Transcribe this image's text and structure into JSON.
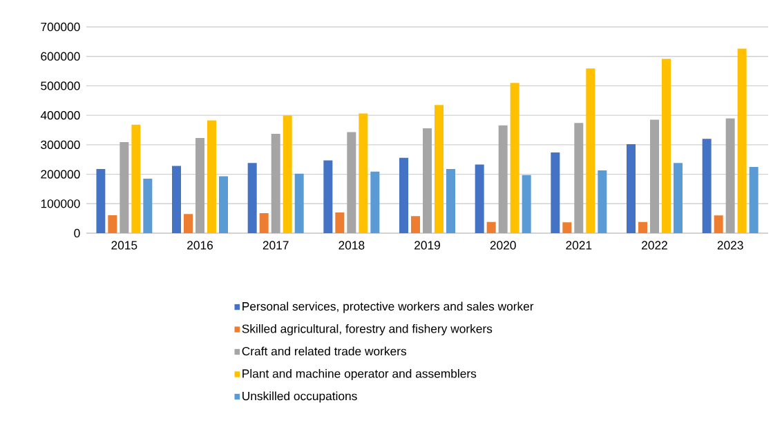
{
  "chart_data": {
    "type": "bar",
    "categories": [
      "2015",
      "2016",
      "2017",
      "2018",
      "2019",
      "2020",
      "2021",
      "2022",
      "2023"
    ],
    "series": [
      {
        "name": "Personal services, protective workers and sales worker",
        "color": "#4472c4",
        "values": [
          218000,
          228000,
          238000,
          247000,
          256000,
          233000,
          274000,
          302000,
          320000
        ]
      },
      {
        "name": "Skilled agricultural, forestry and fishery workers",
        "color": "#ed7d31",
        "values": [
          61000,
          65000,
          68000,
          70000,
          58000,
          38000,
          37000,
          38000,
          60000
        ]
      },
      {
        "name": "Craft and related trade workers",
        "color": "#a5a5a5",
        "values": [
          309000,
          323000,
          337000,
          343000,
          356000,
          366000,
          374000,
          385000,
          390000
        ]
      },
      {
        "name": "Plant and machine operator and assemblers",
        "color": "#ffc000",
        "values": [
          368000,
          383000,
          400000,
          406000,
          435000,
          510000,
          559000,
          592000,
          626000
        ]
      },
      {
        "name": "Unskilled occupations",
        "color": "#5b9bd5",
        "values": [
          185000,
          193000,
          202000,
          209000,
          218000,
          197000,
          213000,
          238000,
          225000
        ]
      }
    ],
    "ylim": [
      0,
      700000
    ],
    "yticks": [
      0,
      100000,
      200000,
      300000,
      400000,
      500000,
      600000,
      700000
    ],
    "grid": "y",
    "legend": "bottom"
  }
}
